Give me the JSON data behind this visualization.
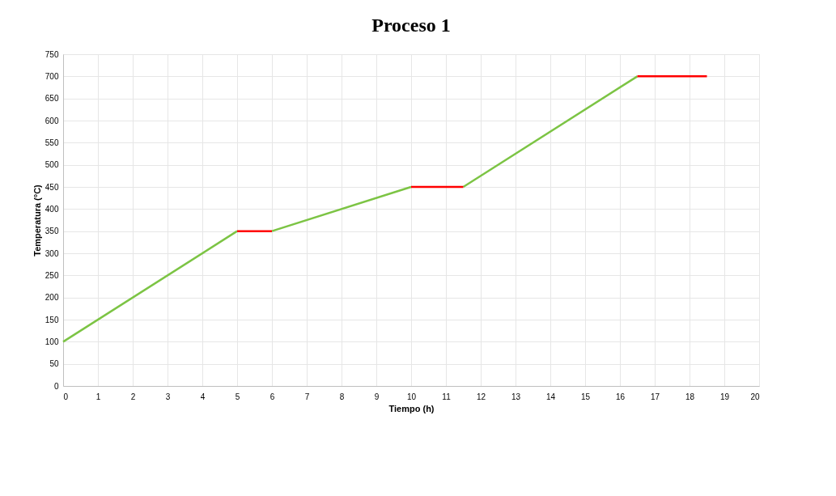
{
  "chart_data": {
    "type": "line",
    "title": "Proceso 1",
    "xlabel": "Tiempo (h)",
    "ylabel": "Temperatura (°C)",
    "xlim": [
      0,
      20
    ],
    "xticks": [
      0,
      1,
      2,
      3,
      4,
      5,
      6,
      7,
      8,
      9,
      10,
      11,
      12,
      13,
      14,
      15,
      16,
      17,
      18,
      19,
      20
    ],
    "ylim": [
      0,
      750
    ],
    "yticks": [
      0,
      50,
      100,
      150,
      200,
      250,
      300,
      350,
      400,
      450,
      500,
      550,
      600,
      650,
      700,
      750
    ],
    "grid": true,
    "legend": false,
    "marker": "none",
    "line_style": "solid",
    "series": [
      {
        "color": "#7cc444",
        "x": [
          0,
          5,
          5.5,
          6,
          10,
          10.75,
          11.5,
          16.5
        ],
        "values": [
          100,
          350,
          null,
          350,
          450,
          null,
          450,
          700
        ]
      },
      {
        "color": "#ff0000",
        "x": [
          5,
          6,
          8,
          10,
          11.5,
          14,
          16.5,
          18.5
        ],
        "values": [
          350,
          350,
          null,
          450,
          450,
          null,
          700,
          700
        ]
      }
    ]
  }
}
